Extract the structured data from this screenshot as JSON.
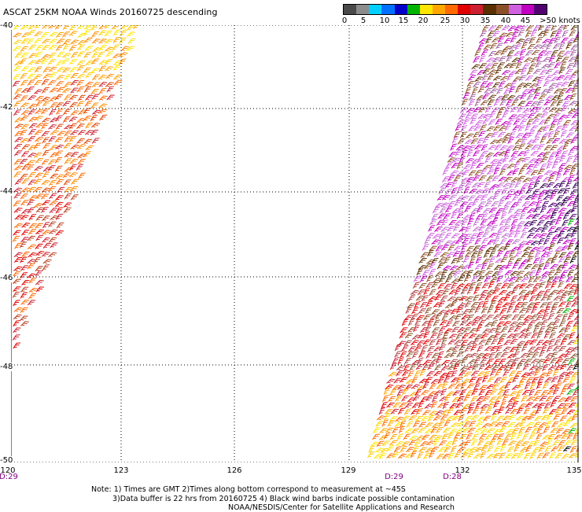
{
  "title": "ASCAT 25KM NOAA Winds 20160725 descending",
  "legend": {
    "colors": [
      "#4a4a4a",
      "#8c8c8c",
      "#00d0ff",
      "#0070ff",
      "#0000c8",
      "#00b400",
      "#ffe600",
      "#ffa600",
      "#ff6a00",
      "#e00000",
      "#cc2030",
      "#5a3000",
      "#8c5028",
      "#d060e0",
      "#c000c0",
      "#500070"
    ],
    "labels": [
      "0",
      "5",
      "10",
      "15",
      "20",
      "25",
      "30",
      "35",
      "40",
      "45",
      ">50 knots"
    ]
  },
  "axes": {
    "y_labels": [
      "-40",
      "-42",
      "-44",
      "-46",
      "-48",
      "-50"
    ],
    "x_labels": [
      "120",
      "123",
      "126",
      "129",
      "132",
      "135"
    ]
  },
  "swath_times": [
    "D:29",
    "D:29",
    "D:28"
  ],
  "notes": {
    "line1": "Note: 1) Times are GMT 2)Times along bottom correspond to measurement at ~45S",
    "line2": "3)Data buffer is 22 hrs from 20160725 4) Black wind barbs indicate possible contamination",
    "line3": "NOAA/NESDIS/Center for Satellite Applications and Research"
  }
}
